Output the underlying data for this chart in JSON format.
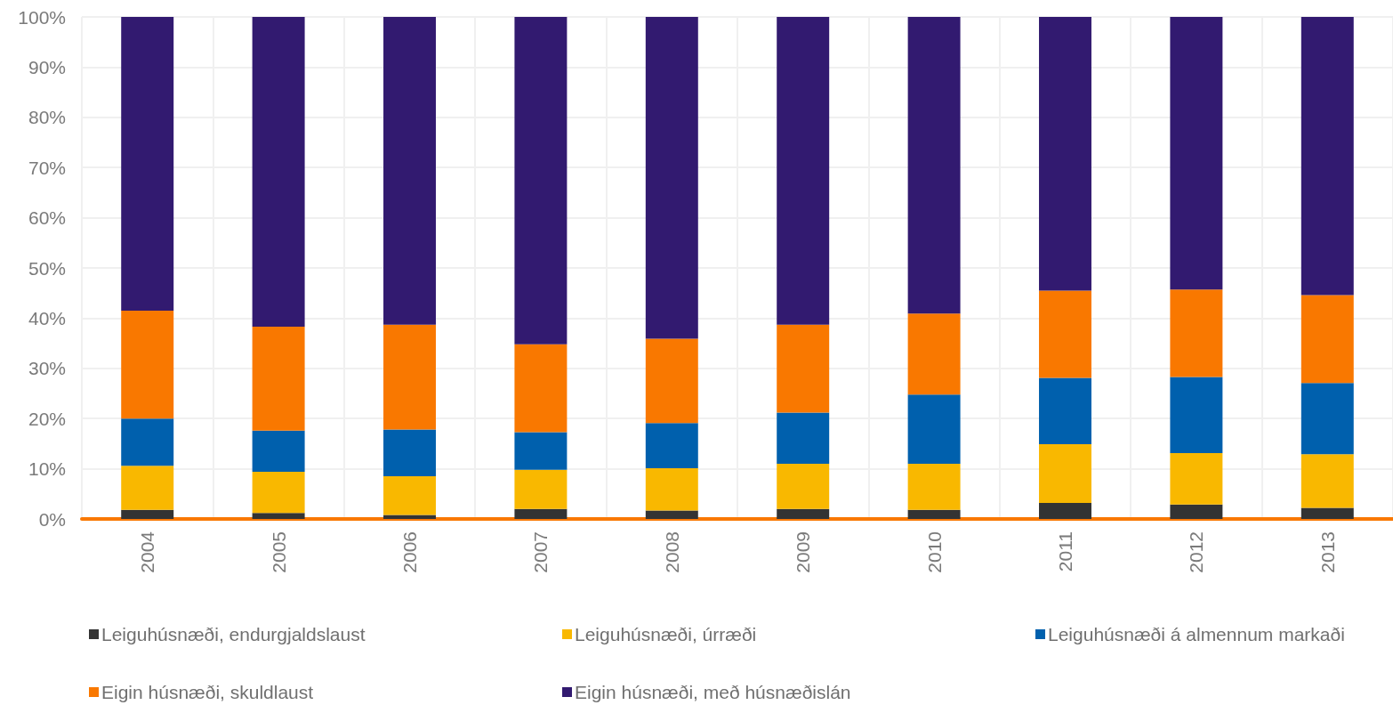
{
  "chart_data": {
    "type": "bar",
    "stacked": true,
    "categories": [
      "2004",
      "2005",
      "2006",
      "2007",
      "2008",
      "2009",
      "2010",
      "2011",
      "2012",
      "2013"
    ],
    "series": [
      {
        "name": "Leiguhúsnæði, endurgjaldslaust",
        "color": "#333333",
        "values": [
          1.8,
          1.2,
          0.8,
          2.0,
          1.7,
          2.0,
          1.8,
          3.2,
          2.9,
          2.2
        ]
      },
      {
        "name": "Leiguhúsnæði, úrræði",
        "color": "#f9b800",
        "values": [
          8.8,
          8.2,
          7.7,
          7.8,
          8.4,
          9.0,
          9.2,
          11.7,
          10.2,
          10.7
        ]
      },
      {
        "name": "Leiguhúsnæði á almennum markaði",
        "color": "#0060ad",
        "values": [
          9.4,
          8.2,
          9.3,
          7.5,
          9.0,
          10.2,
          13.8,
          13.2,
          15.2,
          14.2
        ]
      },
      {
        "name": "Eigin húsnæði, skuldlaust",
        "color": "#f97800",
        "values": [
          21.5,
          20.7,
          20.9,
          17.5,
          16.8,
          17.5,
          16.1,
          17.4,
          17.4,
          17.5
        ]
      },
      {
        "name": "Eigin húsnæði, með húsnæðislán",
        "color": "#321a70",
        "values": [
          58.5,
          61.7,
          61.3,
          65.2,
          64.1,
          61.3,
          59.1,
          54.5,
          54.3,
          55.4
        ]
      }
    ],
    "ylim": [
      0,
      100
    ],
    "yticks": [
      {
        "value": 0,
        "label": "0%"
      },
      {
        "value": 10,
        "label": "10%"
      },
      {
        "value": 20,
        "label": "20%"
      },
      {
        "value": 30,
        "label": "30%"
      },
      {
        "value": 40,
        "label": "40%"
      },
      {
        "value": 50,
        "label": "50%"
      },
      {
        "value": 60,
        "label": "60%"
      },
      {
        "value": 70,
        "label": "70%"
      },
      {
        "value": 80,
        "label": "80%"
      },
      {
        "value": 90,
        "label": "90%"
      },
      {
        "value": 100,
        "label": "100%"
      }
    ],
    "grid": true,
    "legend": "bottom"
  }
}
